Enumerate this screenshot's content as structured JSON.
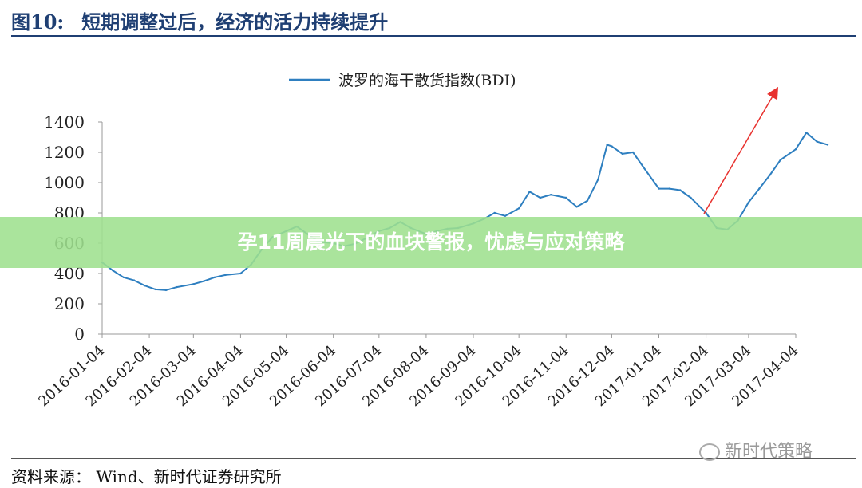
{
  "figure": {
    "number": "图10:",
    "title": "短期调整过后，经济的活力持续提升",
    "source": "资料来源： Wind、新时代证券研究所"
  },
  "banner": {
    "text": "孕11周晨光下的血块警报，忧虑与应对策略"
  },
  "watermark": {
    "text": "新时代策略",
    "icon": "wechat-icon"
  },
  "colors": {
    "series": "#2e7fc0",
    "trend_arrow": "#e8322f",
    "title": "#1f3f73",
    "banner": "#9ee08e"
  },
  "chart_data": {
    "type": "line",
    "title": "",
    "xlabel": "",
    "ylabel": "",
    "legend": {
      "placement": "top-center"
    },
    "grid": false,
    "ylim": [
      0,
      1400
    ],
    "yticks": [
      0,
      200,
      400,
      600,
      800,
      1000,
      1200,
      1400
    ],
    "x_tick_labels": [
      "2016-01-04",
      "2016-02-04",
      "2016-03-04",
      "2016-04-04",
      "2016-05-04",
      "2016-06-04",
      "2016-07-04",
      "2016-08-04",
      "2016-09-04",
      "2016-10-04",
      "2016-11-04",
      "2016-12-04",
      "2017-01-04",
      "2017-02-04",
      "2017-03-04",
      "2017-04-04"
    ],
    "series": [
      {
        "name": "波罗的海干散货指数(BDI)",
        "points": [
          [
            "2016-01-04",
            473
          ],
          [
            "2016-01-11",
            420
          ],
          [
            "2016-01-18",
            375
          ],
          [
            "2016-01-25",
            355
          ],
          [
            "2016-02-01",
            320
          ],
          [
            "2016-02-08",
            295
          ],
          [
            "2016-02-15",
            290
          ],
          [
            "2016-02-22",
            310
          ],
          [
            "2016-03-04",
            330
          ],
          [
            "2016-03-11",
            350
          ],
          [
            "2016-03-18",
            375
          ],
          [
            "2016-03-25",
            390
          ],
          [
            "2016-04-04",
            400
          ],
          [
            "2016-04-11",
            460
          ],
          [
            "2016-04-18",
            560
          ],
          [
            "2016-04-25",
            640
          ],
          [
            "2016-05-04",
            680
          ],
          [
            "2016-05-11",
            710
          ],
          [
            "2016-05-18",
            660
          ],
          [
            "2016-05-25",
            610
          ],
          [
            "2016-06-04",
            600
          ],
          [
            "2016-06-11",
            580
          ],
          [
            "2016-06-18",
            595
          ],
          [
            "2016-06-25",
            630
          ],
          [
            "2016-07-04",
            680
          ],
          [
            "2016-07-11",
            700
          ],
          [
            "2016-07-18",
            740
          ],
          [
            "2016-07-25",
            700
          ],
          [
            "2016-08-04",
            660
          ],
          [
            "2016-08-11",
            680
          ],
          [
            "2016-08-18",
            695
          ],
          [
            "2016-08-25",
            700
          ],
          [
            "2016-09-04",
            730
          ],
          [
            "2016-09-11",
            760
          ],
          [
            "2016-09-18",
            800
          ],
          [
            "2016-09-25",
            780
          ],
          [
            "2016-10-04",
            830
          ],
          [
            "2016-10-11",
            940
          ],
          [
            "2016-10-18",
            900
          ],
          [
            "2016-10-25",
            920
          ],
          [
            "2016-11-04",
            900
          ],
          [
            "2016-11-11",
            840
          ],
          [
            "2016-11-18",
            880
          ],
          [
            "2016-11-25",
            1020
          ],
          [
            "2016-12-01",
            1250
          ],
          [
            "2016-12-04",
            1240
          ],
          [
            "2016-12-11",
            1190
          ],
          [
            "2016-12-18",
            1200
          ],
          [
            "2016-12-25",
            1100
          ],
          [
            "2017-01-04",
            960
          ],
          [
            "2017-01-11",
            960
          ],
          [
            "2017-01-18",
            950
          ],
          [
            "2017-01-25",
            900
          ],
          [
            "2017-02-04",
            800
          ],
          [
            "2017-02-11",
            700
          ],
          [
            "2017-02-18",
            690
          ],
          [
            "2017-02-25",
            750
          ],
          [
            "2017-03-04",
            870
          ],
          [
            "2017-03-11",
            960
          ],
          [
            "2017-03-18",
            1050
          ],
          [
            "2017-03-25",
            1150
          ],
          [
            "2017-04-04",
            1220
          ],
          [
            "2017-04-11",
            1330
          ],
          [
            "2017-04-18",
            1270
          ],
          [
            "2017-04-25",
            1250
          ]
        ]
      }
    ]
  }
}
